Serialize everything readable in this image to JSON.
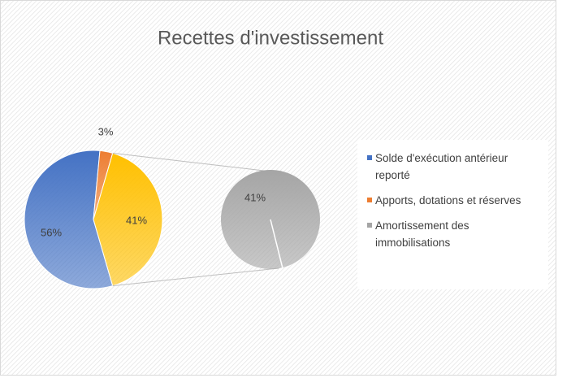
{
  "chart_data": {
    "type": "pie",
    "title": "Recettes d'investissement",
    "categories": [
      "Solde d'exécution antérieur reporté",
      "Apports, dotations et réserves",
      "Amortissement des immobilisations"
    ],
    "values": [
      56,
      3,
      41
    ],
    "value_labels": [
      "56%",
      "3%",
      "41%"
    ],
    "colors": [
      "#4472c4",
      "#ed7d31",
      "#a5a5a5"
    ],
    "other": {
      "value": 41,
      "value_label": "41%",
      "color": "#ffc000"
    },
    "legend": "right"
  }
}
